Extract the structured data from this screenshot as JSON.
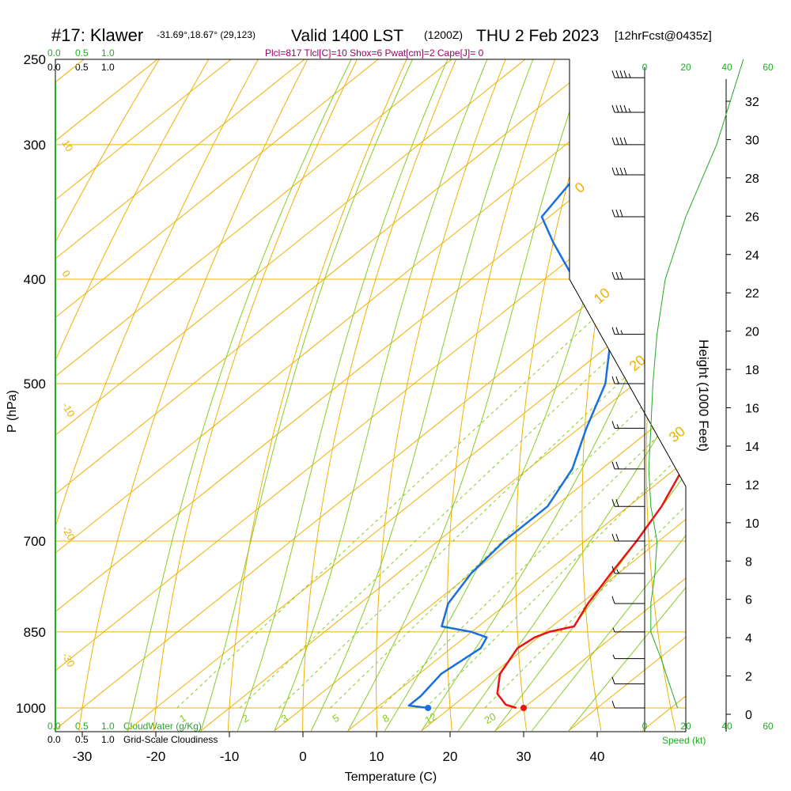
{
  "header": {
    "station": "#17: Klawer",
    "coords": "-31.69°,18.67° (29,123)",
    "valid": "Valid 1400 LST",
    "utc": "(1200Z)",
    "date": "THU 2 Feb 2023",
    "forecast": "[12hrFcst@0435z]",
    "indices": "Plcl=817 Tlcl[C]=10 Shox=6 Pwat[cm]=2 Cape[J]= 0"
  },
  "cloud_scale": {
    "top_green": [
      "0.0",
      "0.5",
      "1.0"
    ],
    "top_black": [
      "0.0",
      "0.5",
      "1.0"
    ],
    "bottom_green": [
      "0.0",
      "0.5",
      "1.0"
    ],
    "bottom_black": [
      "0.0",
      "0.5",
      "1.0"
    ],
    "cloudwater_label": "CloudWater (g/Kg)",
    "cloudiness_label": "Grid-Scale Cloudiness"
  },
  "wind_speed_ticks": [
    "0",
    "20",
    "40",
    "60"
  ],
  "wind_speed_label": "Speed (kt)",
  "mixing_ratio_labels": [
    "1",
    "2",
    "3",
    "5",
    "8",
    "12",
    "20"
  ],
  "dry_adiabat_labels": [
    "10",
    "0",
    "-10",
    "-20",
    "-30"
  ],
  "moist_adiabat_labels": [
    "0",
    "10",
    "20",
    "30"
  ],
  "colors": {
    "temperature": "#ee1111",
    "dewpoint": "#1a6fe0",
    "isotherm": "#f0b000",
    "dry_adiabat": "#f0b000",
    "moist_adiabat": "#88cc22",
    "mixing_ratio": "#88cc22",
    "height_label": "#000000",
    "cloud_green": "#22aa22",
    "title_purple": "#990066"
  },
  "chart_data": {
    "type": "skew-t log-p sounding",
    "xlabel": "Temperature (C)",
    "ylabel": "P (hPa)",
    "y2label": "Height (1000 Feet)",
    "x_ticks": [
      -30,
      -20,
      -10,
      0,
      10,
      20,
      30,
      40
    ],
    "p_ticks": [
      250,
      300,
      400,
      500,
      700,
      850,
      1000
    ],
    "height_ticks": [
      0,
      2,
      4,
      6,
      8,
      10,
      12,
      14,
      16,
      18,
      20,
      22,
      24,
      26,
      28,
      30,
      32
    ],
    "temperature": [
      [
        1000,
        29
      ],
      [
        993,
        27
      ],
      [
        970,
        24
      ],
      [
        930,
        21
      ],
      [
        880,
        19
      ],
      [
        860,
        19.5
      ],
      [
        850,
        20.5
      ],
      [
        840,
        23
      ],
      [
        800,
        21
      ],
      [
        750,
        19
      ],
      [
        700,
        17
      ],
      [
        650,
        14.5
      ],
      [
        600,
        11
      ],
      [
        550,
        6
      ],
      [
        500,
        0.5
      ],
      [
        450,
        -5.5
      ],
      [
        400,
        -12
      ],
      [
        350,
        -20
      ],
      [
        300,
        -30
      ],
      [
        260,
        -39
      ]
    ],
    "dewpoint": [
      [
        1000,
        17
      ],
      [
        995,
        14
      ],
      [
        975,
        14
      ],
      [
        930,
        13
      ],
      [
        880,
        14
      ],
      [
        860,
        13
      ],
      [
        850,
        10
      ],
      [
        840,
        5
      ],
      [
        800,
        2
      ],
      [
        750,
        0
      ],
      [
        700,
        -1
      ],
      [
        650,
        -1
      ],
      [
        600,
        -4
      ],
      [
        550,
        -9
      ],
      [
        500,
        -14
      ],
      [
        460,
        -20
      ],
      [
        430,
        -27
      ],
      [
        400,
        -36
      ],
      [
        370,
        -45
      ],
      [
        350,
        -51
      ],
      [
        300,
        -55
      ],
      [
        260,
        -58
      ]
    ],
    "surface_points": {
      "temperature": 30,
      "dewpoint": 17
    },
    "wind_barbs": [
      {
        "p": 1000,
        "speed": 10
      },
      {
        "p": 950,
        "speed": 10
      },
      {
        "p": 900,
        "speed": 5
      },
      {
        "p": 850,
        "speed": 5
      },
      {
        "p": 800,
        "speed": 10
      },
      {
        "p": 750,
        "speed": 15
      },
      {
        "p": 700,
        "speed": 20
      },
      {
        "p": 650,
        "speed": 20
      },
      {
        "p": 600,
        "speed": 20
      },
      {
        "p": 550,
        "speed": 15
      },
      {
        "p": 500,
        "speed": 20
      },
      {
        "p": 450,
        "speed": 25
      },
      {
        "p": 400,
        "speed": 30
      },
      {
        "p": 350,
        "speed": 30
      },
      {
        "p": 320,
        "speed": 40
      },
      {
        "p": 300,
        "speed": 40
      },
      {
        "p": 280,
        "speed": 45
      },
      {
        "p": 260,
        "speed": 45
      }
    ],
    "wind_speed_profile": [
      [
        1000,
        16
      ],
      [
        950,
        12
      ],
      [
        900,
        8
      ],
      [
        850,
        3
      ],
      [
        800,
        3
      ],
      [
        750,
        5
      ],
      [
        700,
        6
      ],
      [
        650,
        3
      ],
      [
        600,
        2
      ],
      [
        550,
        3
      ],
      [
        500,
        4
      ],
      [
        450,
        6
      ],
      [
        400,
        10
      ],
      [
        350,
        20
      ],
      [
        300,
        35
      ],
      [
        250,
        48
      ]
    ],
    "grid": true
  }
}
